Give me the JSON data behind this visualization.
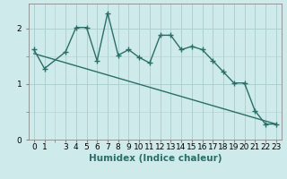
{
  "xlabel": "Humidex (Indice chaleur)",
  "bg_color": "#ceeaea",
  "grid_color": "#aed0d0",
  "line_color": "#2a6e68",
  "x_ticks": [
    0,
    1,
    3,
    4,
    5,
    6,
    7,
    8,
    9,
    10,
    11,
    12,
    13,
    14,
    15,
    16,
    17,
    18,
    19,
    20,
    21,
    22,
    23
  ],
  "series1_x": [
    0,
    1,
    3,
    4,
    5,
    6,
    7,
    8,
    9,
    10,
    11,
    12,
    13,
    14,
    15,
    16,
    17,
    18,
    19,
    20,
    21,
    22,
    23
  ],
  "series1_y": [
    1.62,
    1.28,
    1.58,
    2.02,
    2.02,
    1.42,
    2.28,
    1.52,
    1.62,
    1.48,
    1.38,
    1.88,
    1.88,
    1.62,
    1.68,
    1.62,
    1.42,
    1.22,
    1.02,
    1.02,
    0.52,
    0.28,
    0.28
  ],
  "series2_x": [
    0,
    23
  ],
  "series2_y": [
    1.55,
    0.28
  ],
  "ylim": [
    0.0,
    2.45
  ],
  "yticks": [
    0,
    1,
    2
  ],
  "linewidth": 1.0,
  "tick_fontsize": 6.5,
  "label_fontsize": 7.5
}
